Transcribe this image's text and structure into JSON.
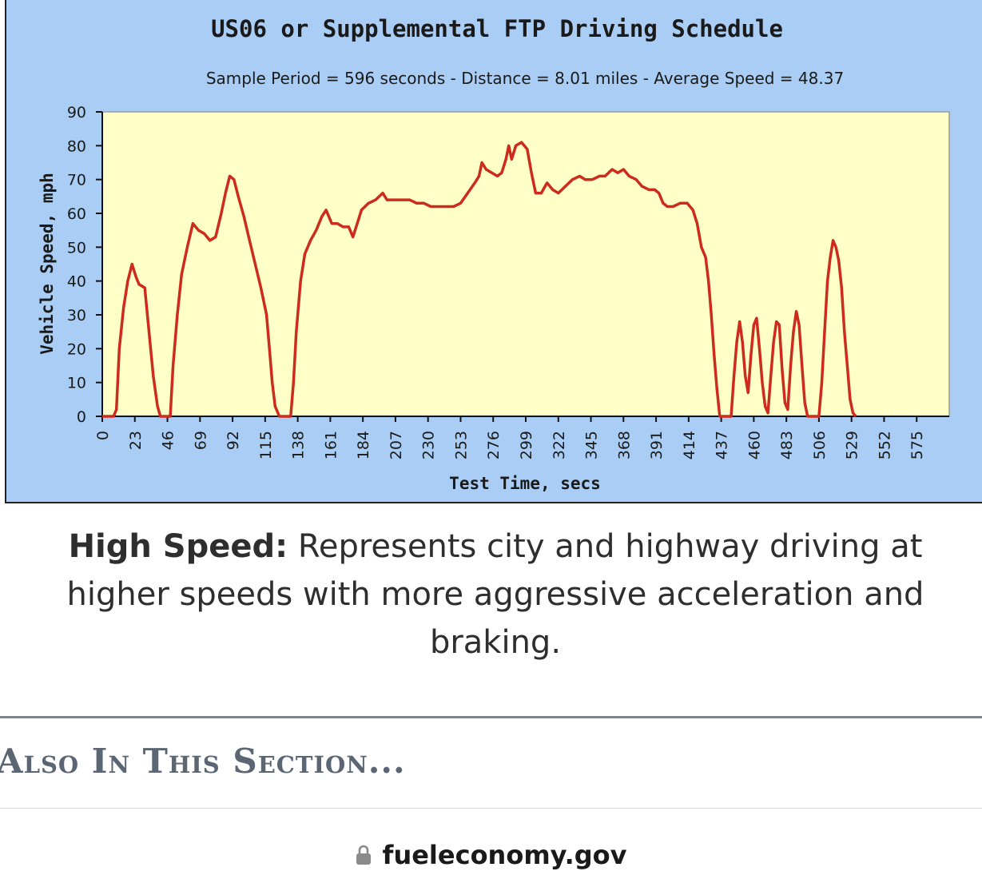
{
  "chart_data": {
    "type": "line",
    "title": "US06 or Supplemental FTP Driving Schedule",
    "subtitle": "Sample Period = 596 seconds - Distance = 8.01 miles - Average Speed = 48.37",
    "xlabel": "Test Time, secs",
    "ylabel": "Vehicle Speed, mph",
    "xlim": [
      0,
      598
    ],
    "ylim": [
      0,
      90
    ],
    "x_ticks": [
      0,
      23,
      46,
      69,
      92,
      115,
      138,
      161,
      184,
      207,
      230,
      253,
      276,
      299,
      322,
      345,
      368,
      391,
      414,
      437,
      460,
      483,
      506,
      529,
      552,
      575
    ],
    "y_ticks": [
      0,
      10,
      20,
      30,
      40,
      50,
      60,
      70,
      80,
      90
    ],
    "grid": false,
    "colors": {
      "line": "#cc2b1d",
      "plot_bg": "#ffffc8",
      "panel_bg": "#a9cdf5"
    },
    "series": [
      {
        "points": [
          [
            0,
            0
          ],
          [
            8,
            0
          ],
          [
            10,
            2
          ],
          [
            12,
            20
          ],
          [
            15,
            32
          ],
          [
            18,
            40
          ],
          [
            21,
            45
          ],
          [
            24,
            41
          ],
          [
            26,
            39
          ],
          [
            30,
            38
          ],
          [
            33,
            25
          ],
          [
            36,
            12
          ],
          [
            39,
            3
          ],
          [
            41,
            0
          ],
          [
            48,
            0
          ],
          [
            50,
            15
          ],
          [
            53,
            30
          ],
          [
            56,
            42
          ],
          [
            60,
            50
          ],
          [
            64,
            57
          ],
          [
            68,
            55
          ],
          [
            72,
            54
          ],
          [
            76,
            52
          ],
          [
            80,
            53
          ],
          [
            84,
            60
          ],
          [
            87,
            66
          ],
          [
            90,
            71
          ],
          [
            93,
            70
          ],
          [
            96,
            65
          ],
          [
            100,
            59
          ],
          [
            104,
            52
          ],
          [
            108,
            45
          ],
          [
            112,
            38
          ],
          [
            116,
            30
          ],
          [
            118,
            20
          ],
          [
            120,
            10
          ],
          [
            122,
            3
          ],
          [
            125,
            0
          ],
          [
            133,
            0
          ],
          [
            135,
            10
          ],
          [
            137,
            25
          ],
          [
            140,
            40
          ],
          [
            143,
            48
          ],
          [
            147,
            52
          ],
          [
            151,
            55
          ],
          [
            155,
            59
          ],
          [
            158,
            61
          ],
          [
            162,
            57
          ],
          [
            166,
            57
          ],
          [
            170,
            56
          ],
          [
            174,
            56
          ],
          [
            177,
            53
          ],
          [
            180,
            57
          ],
          [
            183,
            61
          ],
          [
            188,
            63
          ],
          [
            193,
            64
          ],
          [
            198,
            66
          ],
          [
            201,
            64
          ],
          [
            206,
            64
          ],
          [
            212,
            64
          ],
          [
            217,
            64
          ],
          [
            222,
            63
          ],
          [
            227,
            63
          ],
          [
            232,
            62
          ],
          [
            237,
            62
          ],
          [
            243,
            62
          ],
          [
            248,
            62
          ],
          [
            253,
            63
          ],
          [
            258,
            66
          ],
          [
            263,
            69
          ],
          [
            266,
            71
          ],
          [
            268,
            75
          ],
          [
            271,
            73
          ],
          [
            275,
            72
          ],
          [
            279,
            71
          ],
          [
            282,
            72
          ],
          [
            285,
            76
          ],
          [
            287,
            80
          ],
          [
            289,
            76
          ],
          [
            292,
            80
          ],
          [
            296,
            81
          ],
          [
            300,
            79
          ],
          [
            303,
            72
          ],
          [
            306,
            66
          ],
          [
            310,
            66
          ],
          [
            314,
            69
          ],
          [
            318,
            67
          ],
          [
            322,
            66
          ],
          [
            327,
            68
          ],
          [
            332,
            70
          ],
          [
            337,
            71
          ],
          [
            341,
            70
          ],
          [
            346,
            70
          ],
          [
            351,
            71
          ],
          [
            355,
            71
          ],
          [
            360,
            73
          ],
          [
            364,
            72
          ],
          [
            368,
            73
          ],
          [
            372,
            71
          ],
          [
            377,
            70
          ],
          [
            381,
            68
          ],
          [
            386,
            67
          ],
          [
            390,
            67
          ],
          [
            393,
            66
          ],
          [
            396,
            63
          ],
          [
            399,
            62
          ],
          [
            403,
            62
          ],
          [
            408,
            63
          ],
          [
            413,
            63
          ],
          [
            417,
            61
          ],
          [
            420,
            57
          ],
          [
            423,
            50
          ],
          [
            426,
            47
          ],
          [
            428,
            40
          ],
          [
            430,
            30
          ],
          [
            432,
            18
          ],
          [
            434,
            8
          ],
          [
            436,
            0
          ],
          [
            444,
            0
          ],
          [
            446,
            12
          ],
          [
            448,
            22
          ],
          [
            450,
            28
          ],
          [
            452,
            22
          ],
          [
            454,
            12
          ],
          [
            456,
            7
          ],
          [
            458,
            18
          ],
          [
            460,
            27
          ],
          [
            462,
            29
          ],
          [
            464,
            20
          ],
          [
            466,
            10
          ],
          [
            468,
            3
          ],
          [
            470,
            1
          ],
          [
            472,
            12
          ],
          [
            474,
            22
          ],
          [
            476,
            28
          ],
          [
            478,
            27
          ],
          [
            480,
            14
          ],
          [
            482,
            4
          ],
          [
            484,
            2
          ],
          [
            486,
            15
          ],
          [
            488,
            25
          ],
          [
            490,
            31
          ],
          [
            492,
            27
          ],
          [
            494,
            15
          ],
          [
            496,
            4
          ],
          [
            498,
            0
          ],
          [
            506,
            0
          ],
          [
            508,
            10
          ],
          [
            510,
            25
          ],
          [
            512,
            40
          ],
          [
            514,
            47
          ],
          [
            516,
            52
          ],
          [
            518,
            50
          ],
          [
            520,
            46
          ],
          [
            522,
            38
          ],
          [
            524,
            25
          ],
          [
            526,
            15
          ],
          [
            528,
            5
          ],
          [
            530,
            1
          ],
          [
            532,
            0
          ]
        ]
      }
    ]
  },
  "caption": {
    "lead": "High Speed:",
    "text": " Represents city and highway driving at higher speeds with more aggressive acceleration and braking."
  },
  "section": {
    "heading": "Also In This Section..."
  },
  "browser": {
    "url": "fueleconomy.gov",
    "lock_icon": "lock-icon"
  }
}
